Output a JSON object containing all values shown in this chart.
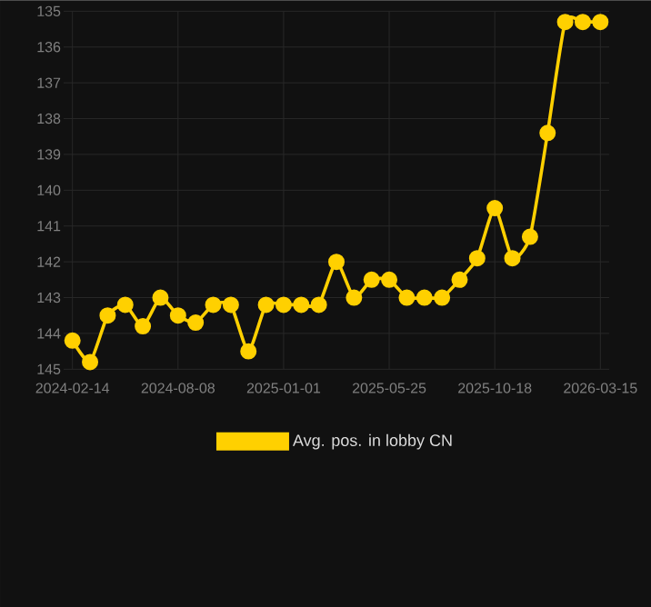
{
  "chart_data": {
    "type": "line",
    "categories": [
      "2024-02-14",
      null,
      null,
      null,
      null,
      null,
      "2024-08-08",
      null,
      null,
      null,
      null,
      null,
      "2025-01-01",
      null,
      null,
      null,
      null,
      null,
      "2025-05-25",
      null,
      null,
      null,
      null,
      null,
      "2025-10-18",
      null,
      null,
      null,
      null,
      null,
      "2026-03-15"
    ],
    "series": [
      {
        "name": "Avg. pos. in lobby CN",
        "color": "#ffd000",
        "values": [
          144.2,
          144.8,
          143.5,
          143.2,
          143.8,
          143.0,
          143.5,
          143.7,
          143.2,
          143.2,
          144.5,
          143.2,
          143.2,
          143.2,
          143.2,
          142.0,
          143.0,
          142.5,
          142.5,
          143.0,
          143.0,
          143.0,
          142.5,
          141.9,
          140.5,
          141.9,
          141.3,
          138.4,
          135.3,
          135.3,
          135.3
        ]
      }
    ],
    "ylim": [
      145,
      135
    ],
    "yticks": [
      135,
      136,
      137,
      138,
      139,
      140,
      141,
      142,
      143,
      144,
      145
    ],
    "grid": true,
    "legend": "bottom",
    "marker": "circle",
    "line_style": "solid"
  }
}
